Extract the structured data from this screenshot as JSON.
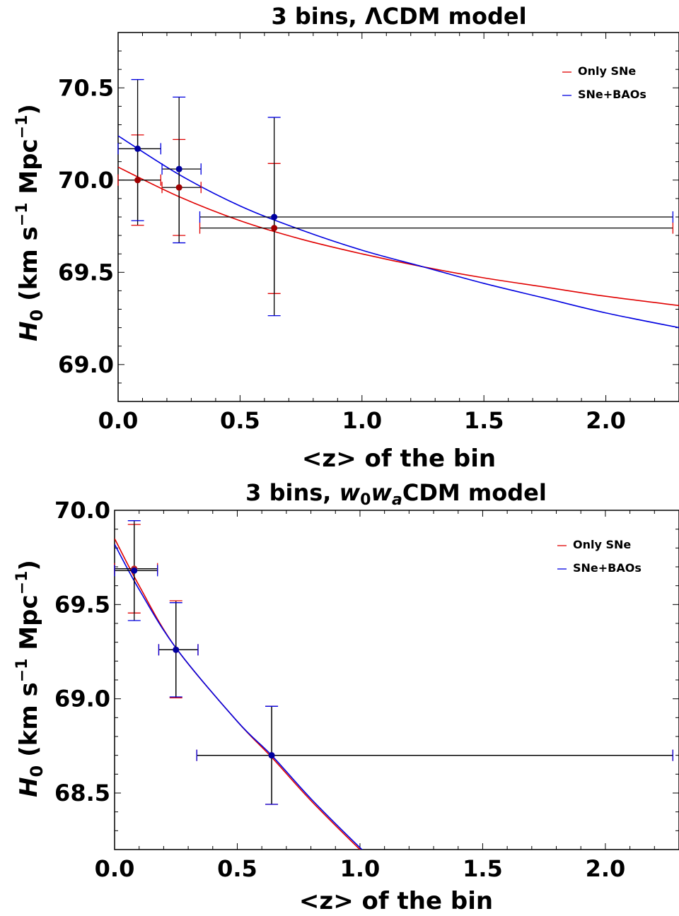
{
  "chart_data": [
    {
      "type": "scatter",
      "title_prefix": "3 bins, ",
      "title_model": "ΛCDM",
      "title_suffix": " model",
      "xlabel": "<z> of the bin",
      "ylabel_main": "H",
      "ylabel_sub": "0",
      "ylabel_units": " (km s",
      "ylabel_exp1": "−1",
      "ylabel_mid": " Mpc",
      "ylabel_exp2": "−1",
      "ylabel_end": ")",
      "xlim": [
        0.0,
        2.3
      ],
      "ylim": [
        68.8,
        70.8
      ],
      "xticks": [
        0.0,
        0.5,
        1.0,
        1.5,
        2.0
      ],
      "xtick_labels": [
        "0.0",
        "0.5",
        "1.0",
        "1.5",
        "2.0"
      ],
      "yticks": [
        69.0,
        69.5,
        70.0,
        70.5
      ],
      "ytick_labels": [
        "69.0",
        "69.5",
        "70.0",
        "70.5"
      ],
      "legend_position": "top-right",
      "series": [
        {
          "name": "Only SNe",
          "color": "#e00000",
          "marker_color": "#a00000",
          "points": [
            {
              "x": 0.08,
              "y": 70.0,
              "xerr_lo": 0.08,
              "xerr_hi": 0.095,
              "yerr_lo": 0.245,
              "yerr_hi": 0.245
            },
            {
              "x": 0.25,
              "y": 69.96,
              "xerr_lo": 0.07,
              "xerr_hi": 0.09,
              "yerr_lo": 0.26,
              "yerr_hi": 0.26
            },
            {
              "x": 0.64,
              "y": 69.74,
              "xerr_lo": 0.305,
              "xerr_hi": 1.635,
              "yerr_lo": 0.355,
              "yerr_hi": 0.35
            }
          ],
          "curve": {
            "x": [
              0.0,
              0.25,
              0.5,
              0.75,
              1.0,
              1.25,
              1.5,
              1.75,
              2.0,
              2.3
            ],
            "y": [
              70.07,
              69.91,
              69.78,
              69.68,
              69.6,
              69.53,
              69.47,
              69.42,
              69.37,
              69.32
            ]
          }
        },
        {
          "name": "SNe+BAOs",
          "color": "#0000e0",
          "marker_color": "#0000a0",
          "points": [
            {
              "x": 0.08,
              "y": 70.17,
              "xerr_lo": 0.08,
              "xerr_hi": 0.095,
              "yerr_lo": 0.39,
              "yerr_hi": 0.375
            },
            {
              "x": 0.25,
              "y": 70.06,
              "xerr_lo": 0.07,
              "xerr_hi": 0.09,
              "yerr_lo": 0.4,
              "yerr_hi": 0.39
            },
            {
              "x": 0.64,
              "y": 69.8,
              "xerr_lo": 0.305,
              "xerr_hi": 1.635,
              "yerr_lo": 0.535,
              "yerr_hi": 0.54
            }
          ],
          "curve": {
            "x": [
              0.0,
              0.25,
              0.5,
              0.75,
              1.0,
              1.25,
              1.5,
              1.75,
              2.0,
              2.3
            ],
            "y": [
              70.24,
              70.03,
              69.86,
              69.73,
              69.62,
              69.53,
              69.44,
              69.36,
              69.28,
              69.2
            ]
          }
        }
      ]
    },
    {
      "type": "scatter",
      "title_prefix": "3 bins, ",
      "title_model_w0": "w",
      "title_model_w0_sub": "0",
      "title_model_wa": "w",
      "title_model_wa_sub": "a",
      "title_suffix": "CDM model",
      "xlabel": "<z> of the bin",
      "ylabel_main": "H",
      "ylabel_sub": "0",
      "ylabel_units": " (km s",
      "ylabel_exp1": "−1",
      "ylabel_mid": " Mpc",
      "ylabel_exp2": "−1",
      "ylabel_end": ")",
      "xlim": [
        0.0,
        2.3
      ],
      "ylim": [
        68.2,
        70.0
      ],
      "xticks": [
        0.0,
        0.5,
        1.0,
        1.5,
        2.0
      ],
      "xtick_labels": [
        "0.0",
        "0.5",
        "1.0",
        "1.5",
        "2.0"
      ],
      "yticks": [
        68.5,
        69.0,
        69.5,
        70.0
      ],
      "ytick_labels": [
        "68.5",
        "69.0",
        "69.5",
        "70.0"
      ],
      "legend_position": "top-right",
      "series": [
        {
          "name": "Only SNe",
          "color": "#e00000",
          "marker_color": "#c02020",
          "points": [
            {
              "x": 0.08,
              "y": 69.69,
              "xerr_lo": 0.08,
              "xerr_hi": 0.095,
              "yerr_lo": 0.235,
              "yerr_hi": 0.235
            },
            {
              "x": 0.25,
              "y": 69.26,
              "xerr_lo": 0.07,
              "xerr_hi": 0.09,
              "yerr_lo": 0.255,
              "yerr_hi": 0.26
            },
            {
              "x": 0.64,
              "y": 68.7,
              "xerr_lo": 0.305,
              "xerr_hi": 1.635,
              "yerr_lo": 0.26,
              "yerr_hi": 0.26
            }
          ],
          "curve": {
            "x": [
              0.0,
              0.1,
              0.25,
              0.5,
              0.64,
              0.8,
              1.0,
              1.03
            ],
            "y": [
              69.85,
              69.6,
              69.27,
              68.88,
              68.69,
              68.46,
              68.2,
              68.17
            ]
          }
        },
        {
          "name": "SNe+BAOs",
          "color": "#0000e0",
          "marker_color": "#0000a0",
          "points": [
            {
              "x": 0.08,
              "y": 69.68,
              "xerr_lo": 0.08,
              "xerr_hi": 0.095,
              "yerr_lo": 0.265,
              "yerr_hi": 0.265
            },
            {
              "x": 0.25,
              "y": 69.26,
              "xerr_lo": 0.07,
              "xerr_hi": 0.09,
              "yerr_lo": 0.25,
              "yerr_hi": 0.25
            },
            {
              "x": 0.64,
              "y": 68.7,
              "xerr_lo": 0.305,
              "xerr_hi": 1.635,
              "yerr_lo": 0.26,
              "yerr_hi": 0.26
            }
          ],
          "curve": {
            "x": [
              0.0,
              0.1,
              0.25,
              0.5,
              0.64,
              0.8,
              1.0,
              1.03
            ],
            "y": [
              69.82,
              69.58,
              69.27,
              68.88,
              68.7,
              68.47,
              68.21,
              68.18
            ]
          }
        }
      ]
    }
  ]
}
